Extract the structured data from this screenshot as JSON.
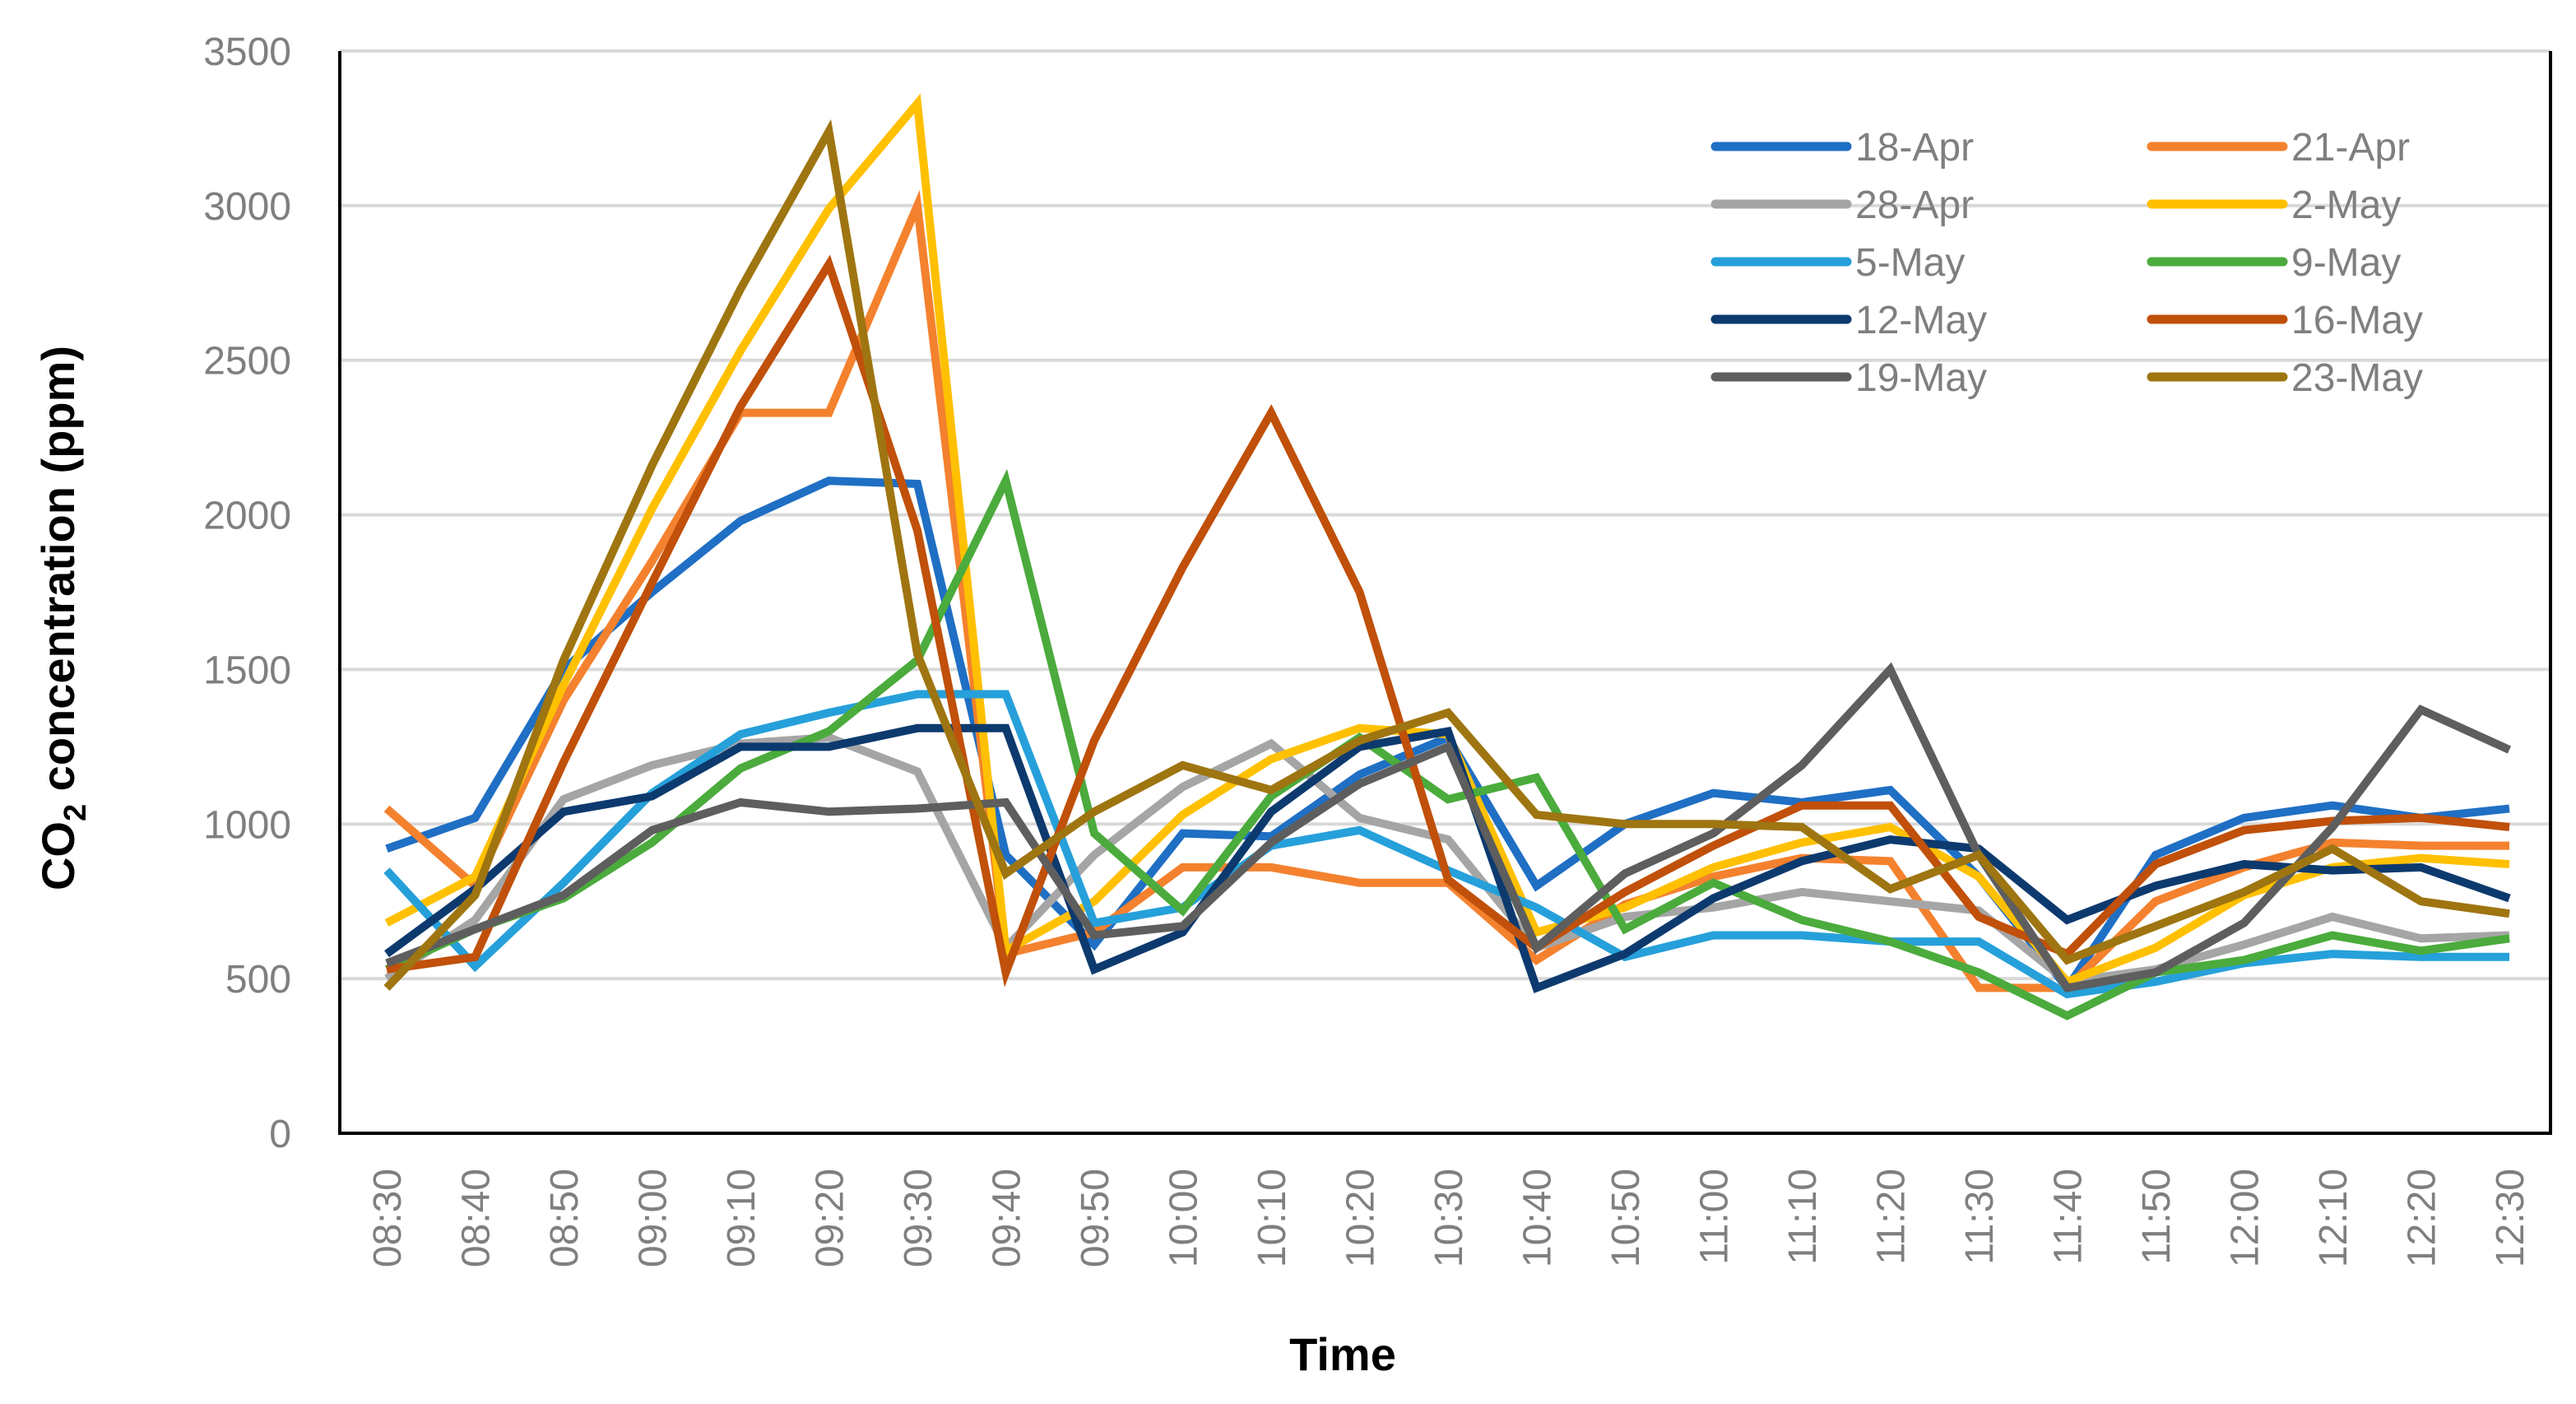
{
  "chart_data": {
    "type": "line",
    "title": "",
    "xlabel": "Time",
    "ylabel_main": "CO",
    "ylabel_sub": "2",
    "ylabel_rest": " concentration (ppm)",
    "ylim": [
      0,
      3500
    ],
    "yticks": [
      "0",
      "500",
      "1000",
      "1500",
      "2000",
      "2500",
      "3000",
      "3500"
    ],
    "grid": true,
    "legend_position": "top-right",
    "categories": [
      "08:30",
      "08:40",
      "08:50",
      "09:00",
      "09:10",
      "09:20",
      "09:30",
      "09:40",
      "09:50",
      "10:00",
      "10:10",
      "10:20",
      "10:30",
      "10:40",
      "10:50",
      "11:00",
      "11:10",
      "11:20",
      "11:30",
      "11:40",
      "11:50",
      "12:00",
      "12:10",
      "12:20",
      "12:30"
    ],
    "series": [
      {
        "name": "18-Apr",
        "color": "#1f6fc4",
        "values": [
          920,
          1020,
          1500,
          1750,
          1980,
          2110,
          2100,
          900,
          610,
          970,
          960,
          1160,
          1280,
          800,
          1000,
          1100,
          1070,
          1110,
          830,
          470,
          900,
          1020,
          1060,
          1020,
          1050
        ]
      },
      {
        "name": "21-Apr",
        "color": "#f4812e",
        "values": [
          1050,
          800,
          1400,
          1850,
          2330,
          2330,
          3000,
          580,
          650,
          860,
          860,
          810,
          810,
          560,
          740,
          830,
          890,
          880,
          470,
          470,
          750,
          860,
          940,
          930,
          930
        ]
      },
      {
        "name": "28-Apr",
        "color": "#a5a5a5",
        "values": [
          500,
          690,
          1080,
          1190,
          1260,
          1280,
          1170,
          600,
          900,
          1120,
          1260,
          1020,
          950,
          600,
          700,
          730,
          780,
          750,
          720,
          490,
          530,
          610,
          700,
          630,
          640
        ]
      },
      {
        "name": "2-May",
        "color": "#ffc000",
        "values": [
          680,
          830,
          1450,
          2020,
          2530,
          2990,
          3330,
          590,
          750,
          1030,
          1210,
          1310,
          1290,
          650,
          730,
          860,
          940,
          990,
          830,
          490,
          600,
          770,
          860,
          890,
          870
        ]
      },
      {
        "name": "5-May",
        "color": "#26a0da",
        "values": [
          850,
          540,
          810,
          1100,
          1290,
          1360,
          1420,
          1420,
          680,
          730,
          930,
          980,
          850,
          730,
          570,
          640,
          640,
          620,
          620,
          450,
          490,
          550,
          580,
          570,
          570
        ]
      },
      {
        "name": "9-May",
        "color": "#4bab3c",
        "values": [
          530,
          660,
          760,
          940,
          1180,
          1300,
          1530,
          2110,
          970,
          720,
          1090,
          1280,
          1080,
          1150,
          660,
          810,
          690,
          620,
          520,
          380,
          520,
          560,
          640,
          590,
          630
        ]
      },
      {
        "name": "12-May",
        "color": "#0d3a6e",
        "values": [
          580,
          790,
          1040,
          1090,
          1250,
          1250,
          1310,
          1310,
          530,
          650,
          1040,
          1250,
          1300,
          470,
          580,
          760,
          880,
          950,
          920,
          690,
          800,
          870,
          850,
          860,
          760
        ]
      },
      {
        "name": "16-May",
        "color": "#c0500a",
        "values": [
          530,
          570,
          1200,
          1780,
          2350,
          2810,
          1950,
          520,
          1270,
          1830,
          2330,
          1750,
          820,
          600,
          780,
          930,
          1060,
          1060,
          700,
          580,
          870,
          980,
          1010,
          1020,
          990
        ]
      },
      {
        "name": "19-May",
        "color": "#5e5e5e",
        "values": [
          550,
          660,
          770,
          980,
          1070,
          1040,
          1050,
          1070,
          640,
          670,
          940,
          1130,
          1250,
          600,
          840,
          970,
          1190,
          1500,
          900,
          470,
          520,
          680,
          990,
          1370,
          1240
        ]
      },
      {
        "name": "23-May",
        "color": "#9e7510",
        "values": [
          470,
          770,
          1530,
          2160,
          2730,
          3240,
          1550,
          840,
          1040,
          1190,
          1110,
          1270,
          1360,
          1030,
          1000,
          1000,
          990,
          790,
          900,
          560,
          670,
          780,
          920,
          750,
          710
        ]
      }
    ]
  }
}
